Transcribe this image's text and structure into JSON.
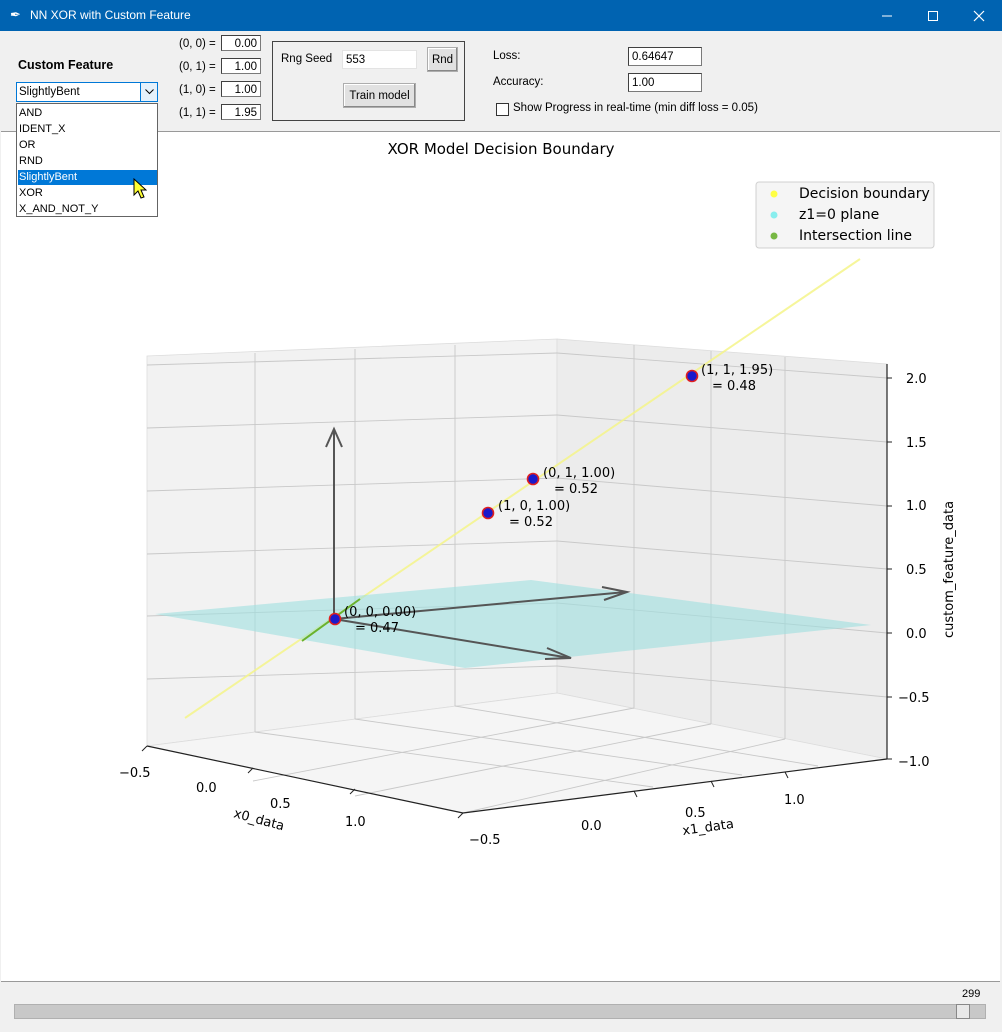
{
  "window": {
    "title": "NN XOR with Custom Feature"
  },
  "custom_feature": {
    "label": "Custom Feature",
    "selected": "SlightlyBent",
    "options": [
      "AND",
      "IDENT_X",
      "OR",
      "RND",
      "SlightlyBent",
      "XOR",
      "X_AND_NOT_Y"
    ],
    "inputs": [
      {
        "label": "(0, 0) =",
        "value": "0.00"
      },
      {
        "label": "(0, 1) =",
        "value": "1.00"
      },
      {
        "label": "(1, 0) =",
        "value": "1.00"
      },
      {
        "label": "(1, 1) =",
        "value": "1.95"
      }
    ]
  },
  "training": {
    "seed_label": "Rng Seed",
    "seed_value": "553",
    "rnd_button": "Rnd",
    "train_button": "Train model"
  },
  "metrics": {
    "loss_label": "Loss:",
    "loss_value": "0.64647",
    "accuracy_label": "Accuracy:",
    "accuracy_value": "1.00",
    "progress_checkbox": "Show Progress in real-time (min diff loss = 0.05)"
  },
  "plot": {
    "title": "XOR Model Decision Boundary",
    "legend": [
      {
        "label": "Decision boundary",
        "color": "#ffff44"
      },
      {
        "label": "z1=0 plane",
        "color": "#88eeee"
      },
      {
        "label": "Intersection line",
        "color": "#77b844"
      }
    ],
    "x_axis_label": "x0_data",
    "y_axis_label": "x1_data",
    "z_axis_label": "custom_feature_data",
    "x_ticks": [
      "−0.5",
      "0.0",
      "0.5",
      "1.0"
    ],
    "y_ticks": [
      "−0.5",
      "0.0",
      "0.5",
      "1.0"
    ],
    "z_ticks": [
      "2.0",
      "1.5",
      "1.0",
      "0.5",
      "0.0",
      "−0.5",
      "−1.0"
    ],
    "points": [
      {
        "label1": "(1, 1, 1.95)",
        "label2": "= 0.48"
      },
      {
        "label1": "(0, 1, 1.00)",
        "label2": "= 0.52"
      },
      {
        "label1": "(1, 0, 1.00)",
        "label2": "= 0.52"
      },
      {
        "label1": "(0, 0, 0.00)",
        "label2": "= 0.47"
      }
    ]
  },
  "chart_data": {
    "type": "scatter",
    "title": "XOR Model Decision Boundary",
    "xlabel": "x0_data",
    "ylabel": "x1_data",
    "zlabel": "custom_feature_data",
    "xlim": [
      -0.5,
      1.0
    ],
    "ylim": [
      -0.5,
      1.0
    ],
    "zlim": [
      -1.0,
      2.0
    ],
    "series": [
      {
        "name": "Decision boundary"
      },
      {
        "name": "z1=0 plane"
      },
      {
        "name": "Intersection line"
      }
    ],
    "points": [
      {
        "x": 0,
        "y": 0,
        "z": 0.0,
        "output": 0.47
      },
      {
        "x": 0,
        "y": 1,
        "z": 1.0,
        "output": 0.52
      },
      {
        "x": 1,
        "y": 0,
        "z": 1.0,
        "output": 0.52
      },
      {
        "x": 1,
        "y": 1,
        "z": 1.95,
        "output": 0.48
      }
    ],
    "grid": true,
    "legend_position": "top-right"
  },
  "slider": {
    "value": "299"
  }
}
